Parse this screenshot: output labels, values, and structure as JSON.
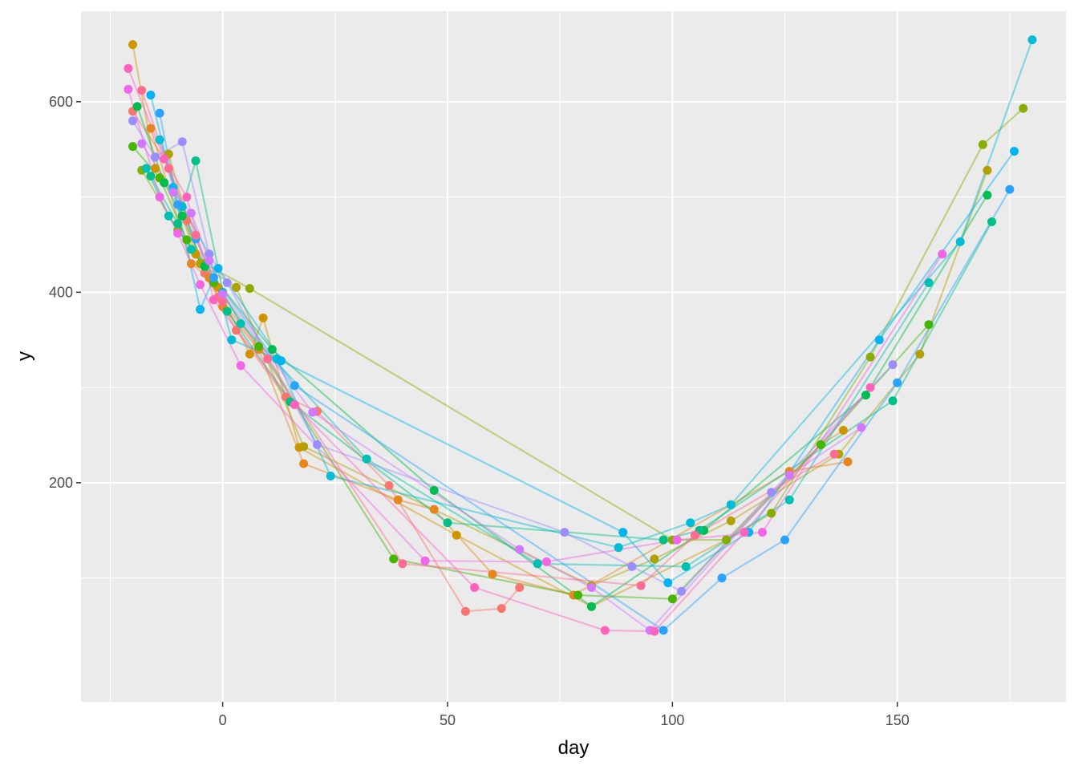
{
  "chart_data": {
    "type": "line",
    "title": "",
    "xlabel": "day",
    "ylabel": "y",
    "xlim": [
      -31.5,
      187.5
    ],
    "ylim": [
      -30,
      695
    ],
    "x_ticks": [
      -25,
      0,
      50,
      100,
      150,
      175
    ],
    "x_tick_labels": [
      "0",
      "50",
      "100",
      "150"
    ],
    "x_tick_values": [
      0,
      50,
      100,
      150
    ],
    "x_minor_ticks": [
      -25,
      25,
      75,
      125,
      175
    ],
    "y_tick_labels": [
      "200",
      "400",
      "600"
    ],
    "y_tick_values": [
      200,
      400,
      600
    ],
    "y_minor_ticks": [
      100,
      300,
      500
    ],
    "grid": true,
    "legend": "none",
    "series": [
      {
        "color": "#F8766D",
        "x": [
          -20,
          -13,
          -8,
          -4,
          -1,
          3,
          14,
          21,
          37,
          54,
          62,
          66
        ],
        "y": [
          590,
          540,
          475,
          420,
          395,
          360,
          290,
          275,
          197,
          65,
          68,
          90
        ]
      },
      {
        "color": "#E7851E",
        "x": [
          -16,
          -7,
          -3,
          0,
          8,
          18,
          39,
          47,
          60,
          78,
          126,
          139
        ],
        "y": [
          572,
          430,
          415,
          385,
          340,
          220,
          182,
          172,
          104,
          82,
          212,
          222
        ]
      },
      {
        "color": "#D09400",
        "x": [
          -20,
          -15,
          -11,
          -6,
          -1,
          6,
          9,
          17,
          52,
          82,
          112,
          133,
          138
        ],
        "y": [
          660,
          530,
          505,
          440,
          405,
          335,
          373,
          237,
          145,
          70,
          140,
          240,
          255
        ]
      },
      {
        "color": "#B2A100",
        "x": [
          -12,
          -5,
          3,
          18,
          82,
          96,
          113,
          137,
          155,
          170
        ],
        "y": [
          545,
          430,
          405,
          238,
          92,
          120,
          160,
          230,
          335,
          528
        ]
      },
      {
        "color": "#89AC00",
        "x": [
          -18,
          -10,
          -4,
          6,
          100,
          112,
          122,
          144,
          169,
          178
        ],
        "y": [
          528,
          465,
          430,
          404,
          140,
          140,
          168,
          332,
          555,
          593
        ]
      },
      {
        "color": "#45B500",
        "x": [
          -20,
          -14,
          -8,
          -2,
          8,
          38,
          79,
          100,
          133,
          157
        ],
        "y": [
          553,
          520,
          455,
          410,
          343,
          120,
          82,
          78,
          240,
          366
        ]
      },
      {
        "color": "#00BC51",
        "x": [
          -19,
          -13,
          -9,
          -4,
          11,
          47,
          82,
          107,
          143,
          170
        ],
        "y": [
          595,
          515,
          480,
          427,
          340,
          192,
          70,
          150,
          292,
          502
        ]
      },
      {
        "color": "#00C087",
        "x": [
          -16,
          -10,
          -6,
          1,
          15,
          50,
          98,
          106,
          149,
          171
        ],
        "y": [
          522,
          472,
          538,
          380,
          285,
          158,
          140,
          150,
          286,
          474
        ]
      },
      {
        "color": "#00C0B2",
        "x": [
          -17,
          -12,
          -7,
          0,
          4,
          32,
          70,
          103,
          126,
          157
        ],
        "y": [
          530,
          480,
          445,
          400,
          367,
          225,
          115,
          112,
          182,
          410
        ]
      },
      {
        "color": "#00BCD6",
        "x": [
          -14,
          -9,
          -3,
          2,
          12,
          24,
          88,
          104,
          113,
          164,
          180
        ],
        "y": [
          560,
          490,
          440,
          350,
          330,
          207,
          132,
          158,
          177,
          453,
          665
        ]
      },
      {
        "color": "#00B3F2",
        "x": [
          -16,
          -11,
          -5,
          -1,
          13,
          89,
          99,
          117,
          146,
          176
        ],
        "y": [
          607,
          510,
          382,
          425,
          328,
          148,
          95,
          148,
          350,
          548
        ]
      },
      {
        "color": "#29A3FF",
        "x": [
          -14,
          -10,
          -6,
          -2,
          16,
          98,
          111,
          125,
          150,
          175
        ],
        "y": [
          588,
          492,
          456,
          415,
          302,
          45,
          100,
          140,
          305,
          508
        ]
      },
      {
        "color": "#9C8DFF",
        "x": [
          -20,
          -15,
          -9,
          -3,
          1,
          21,
          76,
          91,
          102,
          122,
          149
        ],
        "y": [
          580,
          542,
          558,
          440,
          410,
          240,
          148,
          112,
          86,
          190,
          324
        ]
      },
      {
        "color": "#D277FF",
        "x": [
          -18,
          -11,
          -7,
          -3,
          0,
          20,
          66,
          82,
          95,
          126,
          142
        ],
        "y": [
          556,
          505,
          483,
          433,
          398,
          274,
          130,
          90,
          45,
          208,
          258
        ]
      },
      {
        "color": "#F265E7",
        "x": [
          -21,
          -14,
          -10,
          -5,
          4,
          45,
          72,
          101,
          120,
          160
        ],
        "y": [
          613,
          500,
          462,
          408,
          323,
          118,
          117,
          140,
          148,
          440
        ]
      },
      {
        "color": "#FF62BC",
        "x": [
          -21,
          -13,
          -8,
          -2,
          16,
          56,
          85,
          96,
          116,
          144
        ],
        "y": [
          635,
          540,
          500,
          392,
          282,
          90,
          45,
          44,
          148,
          300
        ]
      },
      {
        "color": "#FF6C91",
        "x": [
          -18,
          -12,
          -6,
          0,
          10,
          40,
          93,
          105,
          136
        ],
        "y": [
          612,
          530,
          460,
          390,
          330,
          115,
          92,
          145,
          230
        ]
      }
    ]
  }
}
